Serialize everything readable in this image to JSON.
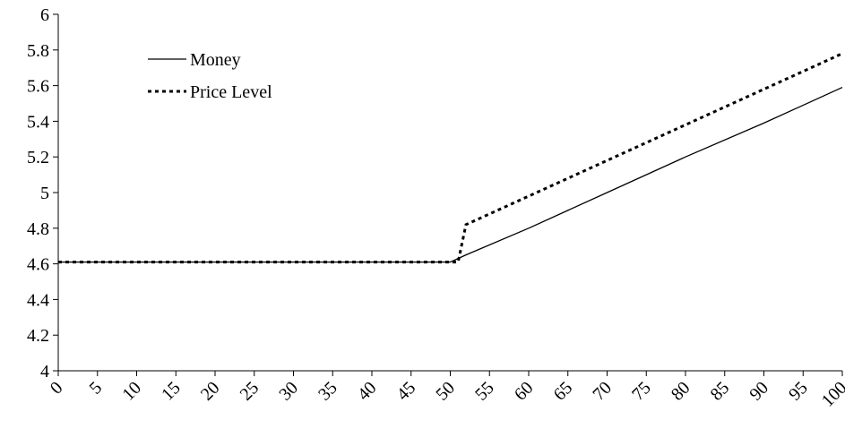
{
  "chart_data": {
    "type": "line",
    "x": [
      0,
      50,
      51,
      52,
      60,
      70,
      80,
      90,
      100
    ],
    "series": [
      {
        "name": "Money",
        "color": "#000000",
        "dash": "solid",
        "values": [
          4.61,
          4.61,
          4.63,
          4.65,
          4.8,
          5.0,
          5.2,
          5.39,
          5.59
        ]
      },
      {
        "name": "Price Level",
        "color": "#000000",
        "dash": "dotted",
        "values": [
          4.61,
          4.61,
          4.61,
          4.82,
          4.98,
          5.18,
          5.38,
          5.58,
          5.78
        ]
      }
    ],
    "xlim": [
      0,
      100
    ],
    "xticks": [
      0,
      5,
      10,
      15,
      20,
      25,
      30,
      35,
      40,
      45,
      50,
      55,
      60,
      65,
      70,
      75,
      80,
      85,
      90,
      95,
      100
    ],
    "ylim": [
      4,
      6
    ],
    "yticks": [
      4,
      4.2,
      4.4,
      4.6,
      4.8,
      5,
      5.2,
      5.4,
      5.6,
      5.8,
      6
    ],
    "grid": false,
    "legend": "upper left"
  }
}
